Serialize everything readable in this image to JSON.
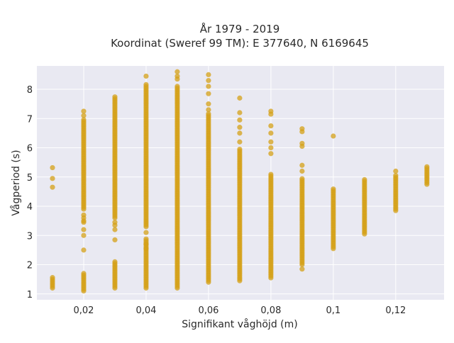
{
  "chart_data": {
    "type": "scatter",
    "title_line1": "År 1979 - 2019",
    "title_line2": "Koordinat (Sweref 99 TM): E 377640, N 6169645",
    "xlabel": "Signifikant våghöjd (m)",
    "ylabel": "Vågperiod (s)",
    "xlim": [
      0.005,
      0.1355
    ],
    "ylim": [
      0.8,
      8.8
    ],
    "x_ticks": [
      0.02,
      0.04,
      0.06,
      0.08,
      0.1,
      0.12
    ],
    "x_tick_labels": [
      "0,02",
      "0,04",
      "0,06",
      "0,08",
      "0,1",
      "0,12"
    ],
    "y_ticks": [
      1,
      2,
      3,
      4,
      5,
      6,
      7,
      8
    ],
    "y_tick_labels": [
      "1",
      "2",
      "3",
      "4",
      "5",
      "6",
      "7",
      "8"
    ],
    "grid": true,
    "colors": {
      "marker": "#d4a017",
      "plot_bg": "#e9e9f2",
      "grid": "#ffffff"
    },
    "columns": [
      {
        "x": 0.01,
        "ranges": [
          [
            1.2,
            1.6
          ]
        ],
        "points": [
          4.65,
          4.95,
          5.32
        ]
      },
      {
        "x": 0.02,
        "ranges": [
          [
            1.1,
            1.7
          ],
          [
            3.9,
            7.0
          ]
        ],
        "points": [
          2.5,
          3.0,
          3.2,
          3.45,
          3.5,
          3.6,
          3.7,
          7.1,
          7.25
        ]
      },
      {
        "x": 0.03,
        "ranges": [
          [
            1.2,
            2.1
          ],
          [
            3.6,
            7.75
          ]
        ],
        "points": [
          2.85,
          3.2,
          3.35,
          3.45
        ]
      },
      {
        "x": 0.04,
        "ranges": [
          [
            1.2,
            2.9
          ],
          [
            3.3,
            8.2
          ]
        ],
        "points": [
          2.55,
          2.7,
          3.1,
          8.45
        ]
      },
      {
        "x": 0.05,
        "ranges": [
          [
            1.2,
            8.15
          ]
        ],
        "points": [
          8.35,
          8.45,
          8.6
        ]
      },
      {
        "x": 0.06,
        "ranges": [
          [
            1.4,
            7.2
          ]
        ],
        "points": [
          7.3,
          7.5,
          7.85,
          8.1,
          8.3,
          8.5
        ]
      },
      {
        "x": 0.07,
        "ranges": [
          [
            1.45,
            6.0
          ]
        ],
        "points": [
          6.2,
          6.5,
          6.7,
          6.95,
          7.2,
          7.7
        ]
      },
      {
        "x": 0.08,
        "ranges": [
          [
            1.55,
            5.1
          ]
        ],
        "points": [
          5.8,
          6.0,
          6.2,
          6.5,
          6.75,
          7.15,
          7.25
        ]
      },
      {
        "x": 0.09,
        "ranges": [
          [
            2.0,
            4.95
          ]
        ],
        "points": [
          1.85,
          5.2,
          5.4,
          6.05,
          6.15,
          6.55,
          6.65
        ]
      },
      {
        "x": 0.1,
        "ranges": [
          [
            2.55,
            4.6
          ]
        ],
        "points": [
          6.4
        ]
      },
      {
        "x": 0.11,
        "ranges": [
          [
            3.05,
            4.95
          ]
        ],
        "points": []
      },
      {
        "x": 0.12,
        "ranges": [
          [
            3.85,
            5.1
          ]
        ],
        "points": [
          5.2
        ]
      },
      {
        "x": 0.13,
        "ranges": [
          [
            4.75,
            5.4
          ]
        ],
        "points": []
      }
    ]
  }
}
